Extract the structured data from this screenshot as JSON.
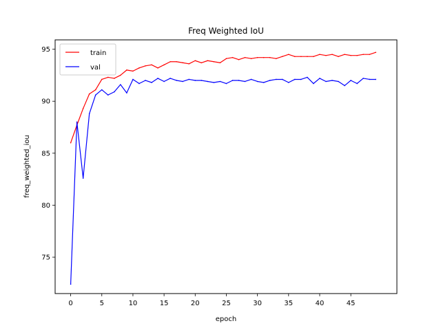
{
  "chart_data": {
    "type": "line",
    "title": "Freq Weighted IoU",
    "xlabel": "epoch",
    "ylabel": "freq_weighted_iou",
    "xlim": [
      -2.5,
      52.4
    ],
    "ylim": [
      71.5,
      95.9
    ],
    "xticks": [
      0,
      5,
      10,
      15,
      20,
      25,
      30,
      35,
      40,
      45
    ],
    "yticks": [
      75,
      80,
      85,
      90,
      95
    ],
    "grid": false,
    "legend": "top-left",
    "x": [
      0,
      1,
      2,
      3,
      4,
      5,
      6,
      7,
      8,
      9,
      10,
      11,
      12,
      13,
      14,
      15,
      16,
      17,
      18,
      19,
      20,
      21,
      22,
      23,
      24,
      25,
      26,
      27,
      28,
      29,
      30,
      31,
      32,
      33,
      34,
      35,
      36,
      37,
      38,
      39,
      40,
      41,
      42,
      43,
      44,
      45,
      46,
      47,
      48,
      49
    ],
    "series": [
      {
        "name": "train",
        "color": "#ff0000",
        "values": [
          86.0,
          87.7,
          89.3,
          90.7,
          91.1,
          92.1,
          92.3,
          92.2,
          92.5,
          93.0,
          92.9,
          93.2,
          93.4,
          93.5,
          93.2,
          93.5,
          93.8,
          93.8,
          93.7,
          93.6,
          93.9,
          93.7,
          93.9,
          93.8,
          93.7,
          94.1,
          94.2,
          94.0,
          94.2,
          94.1,
          94.2,
          94.2,
          94.2,
          94.1,
          94.3,
          94.5,
          94.3,
          94.3,
          94.3,
          94.3,
          94.5,
          94.4,
          94.5,
          94.3,
          94.5,
          94.4,
          94.4,
          94.5,
          94.5,
          94.7
        ]
      },
      {
        "name": "val",
        "color": "#0000ff",
        "values": [
          72.4,
          88.0,
          82.6,
          88.8,
          90.6,
          91.1,
          90.6,
          90.9,
          91.6,
          90.8,
          92.1,
          91.7,
          92.0,
          91.8,
          92.2,
          91.9,
          92.2,
          92.0,
          91.9,
          92.1,
          92.0,
          92.0,
          91.9,
          91.8,
          91.9,
          91.7,
          92.0,
          92.0,
          91.9,
          92.1,
          91.9,
          91.8,
          92.0,
          92.1,
          92.1,
          91.8,
          92.1,
          92.1,
          92.3,
          91.7,
          92.2,
          91.9,
          92.0,
          91.9,
          91.5,
          92.0,
          91.7,
          92.2,
          92.1,
          92.1
        ]
      }
    ]
  }
}
